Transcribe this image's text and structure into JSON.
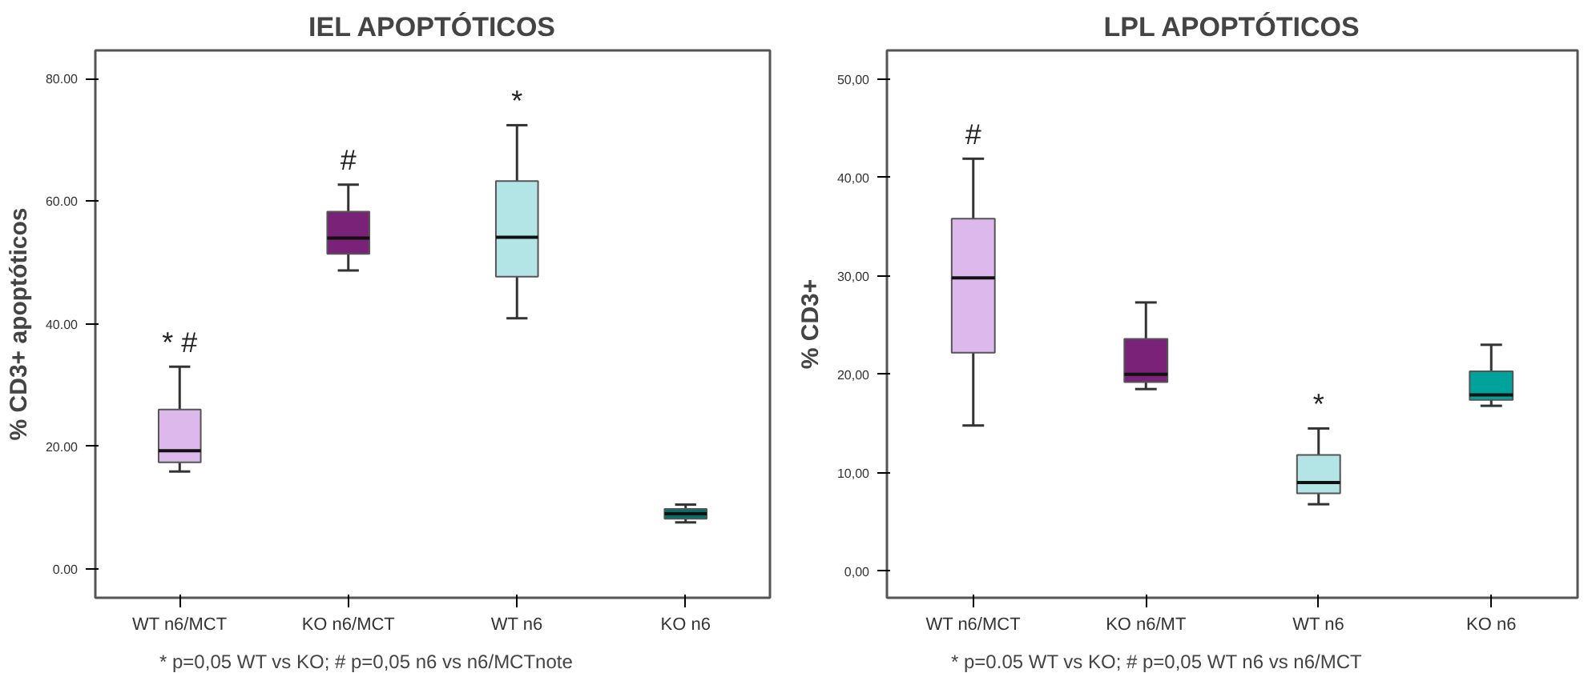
{
  "chart_data": [
    {
      "type": "box",
      "title": "IEL APOPTÓTICOS",
      "ylabel": "% CD3+ apoptóticos",
      "categories": [
        "WT n6/MCT",
        "KO n6/MCT",
        "WT n6",
        "KO n6"
      ],
      "colors": [
        "#dcb8ec",
        "#7a2278",
        "#b3e5e6",
        "#00706c"
      ],
      "boxes": [
        {
          "low": 15.9,
          "q1": 17.4,
          "median": 19.3,
          "q3": 26.0,
          "high": 33.0
        },
        {
          "low": 48.7,
          "q1": 51.4,
          "median": 54.0,
          "q3": 58.3,
          "high": 62.7
        },
        {
          "low": 40.9,
          "q1": 47.7,
          "median": 54.1,
          "q3": 63.3,
          "high": 72.4
        },
        {
          "low": 7.6,
          "q1": 8.2,
          "median": 9.0,
          "q3": 9.8,
          "high": 10.5
        }
      ],
      "ylim": [
        -4.7,
        84.6
      ],
      "yticks": [
        {
          "value": 0,
          "label": "0.00"
        },
        {
          "value": 20,
          "label": "20.00"
        },
        {
          "value": 40,
          "label": "40.00"
        },
        {
          "value": 60,
          "label": "60.00"
        },
        {
          "value": 80,
          "label": "80.00"
        }
      ],
      "grid": false,
      "annotations": [
        {
          "text": "* #",
          "x": "WT n6/MCT",
          "y": 33.0
        },
        {
          "text": "#",
          "x": "KO n6/MCT",
          "y": 62.7
        },
        {
          "text": "*",
          "x": "WT n6",
          "y": 72.4
        },
        "* p=0,05 WT vs KO; # p=0,05 n6 vs n6/MCTnote"
      ]
    },
    {
      "type": "box",
      "title": "LPL APOPTÓTICOS",
      "ylabel": "% CD3+",
      "categories": [
        "WT n6/MCT",
        "KO n6/MT",
        "WT n6",
        "KO n6"
      ],
      "colors": [
        "#dcb8ec",
        "#7a2278",
        "#b3e5e6",
        "#00a39b"
      ],
      "boxes": [
        {
          "low": 14.8,
          "q1": 22.2,
          "median": 29.8,
          "q3": 35.8,
          "high": 41.9
        },
        {
          "low": 18.5,
          "q1": 19.2,
          "median": 20.0,
          "q3": 23.6,
          "high": 27.3
        },
        {
          "low": 6.8,
          "q1": 7.9,
          "median": 9.0,
          "q3": 11.8,
          "high": 14.5
        },
        {
          "low": 16.8,
          "q1": 17.4,
          "median": 17.9,
          "q3": 20.3,
          "high": 23.0
        }
      ],
      "ylim": [
        -2.7,
        52.9
      ],
      "yticks": [
        {
          "value": 0,
          "label": "0,00"
        },
        {
          "value": 10,
          "label": "10,00"
        },
        {
          "value": 20,
          "label": "20,00"
        },
        {
          "value": 30,
          "label": "30,00"
        },
        {
          "value": 40,
          "label": "40,00"
        },
        {
          "value": 50,
          "label": "50,00"
        }
      ],
      "grid": false,
      "annotations": [
        {
          "text": "#",
          "x": "WT n6/MCT",
          "y": 41.9
        },
        {
          "text": "*",
          "x": "WT n6",
          "y": 14.5
        },
        "* p=0.05 WT vs KO; # p=0,05 WT n6 vs n6/MCT"
      ]
    }
  ]
}
